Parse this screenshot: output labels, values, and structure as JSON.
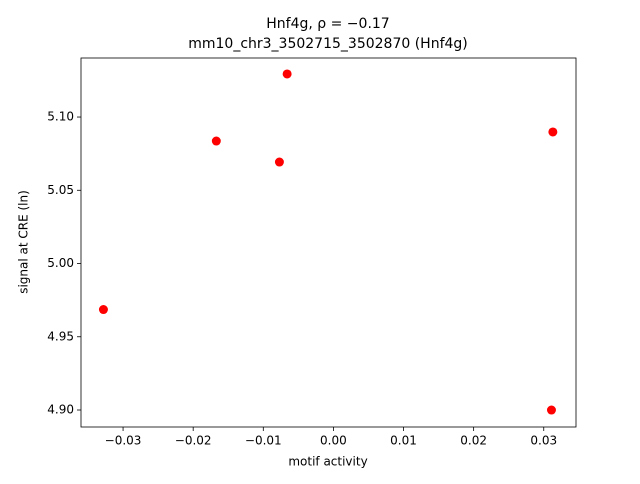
{
  "chart_data": {
    "type": "scatter",
    "title": "Hnf4g, ρ = −0.17",
    "subtitle": "mm10_chr3_3502715_3502870 (Hnf4g)",
    "x_label": "motif activity",
    "y_label": "signal at CRE (ln)",
    "color": "#ff0000",
    "x": [
      -0.0328,
      -0.0167,
      -0.0077,
      -0.0066,
      0.0313,
      0.0311
    ],
    "values": [
      4.9686,
      5.0836,
      5.0693,
      5.1294,
      5.0898,
      4.9
    ],
    "xlim": [
      -0.036,
      0.0346
    ],
    "ylim": [
      4.8884,
      5.1403
    ],
    "xticks": [
      {
        "value": -0.03,
        "label": "−0.03"
      },
      {
        "value": -0.02,
        "label": "−0.02"
      },
      {
        "value": -0.01,
        "label": "−0.01"
      },
      {
        "value": 0,
        "label": "0.00"
      },
      0.01,
      0.02,
      0.03
    ],
    "yticks": [
      {
        "value": 4.9,
        "label": "4.90"
      },
      4.95,
      {
        "value": 5.0,
        "label": "5.00"
      },
      5.05,
      {
        "value": 5.1,
        "label": "5.10"
      }
    ]
  }
}
